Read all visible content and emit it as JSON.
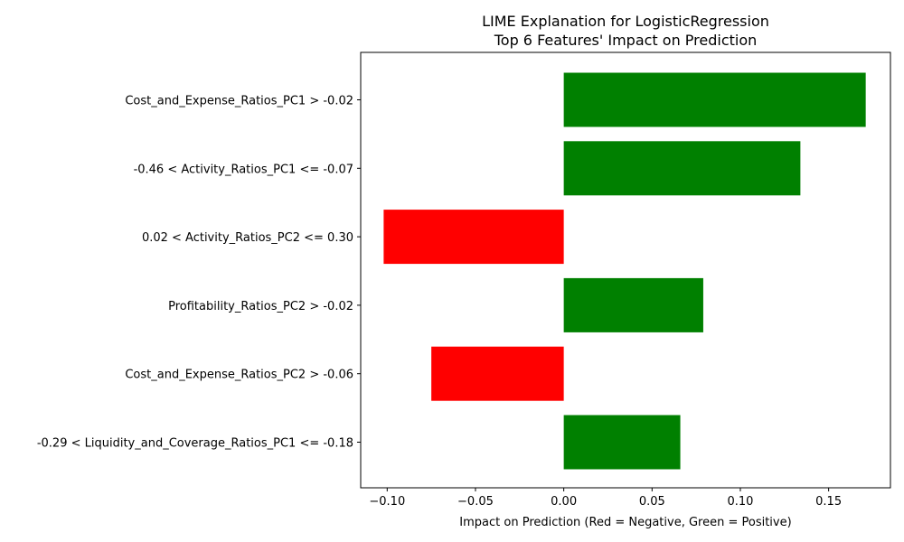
{
  "chart_data": {
    "type": "bar",
    "orientation": "horizontal",
    "title": "LIME Explanation for LogisticRegression",
    "subtitle": "Top 6 Features' Impact on Prediction",
    "xlabel": "Impact on Prediction (Red = Negative, Green = Positive)",
    "ylabel": "",
    "xlim": [
      -0.115,
      0.185
    ],
    "xticks": [
      -0.1,
      -0.05,
      0.0,
      0.05,
      0.1,
      0.15
    ],
    "xtick_labels": [
      "−0.10",
      "−0.05",
      "0.00",
      "0.05",
      "0.10",
      "0.15"
    ],
    "grid": false,
    "colors": {
      "positive": "#008000",
      "negative": "#ff0000"
    },
    "categories": [
      "Cost_and_Expense_Ratios_PC1 > -0.02",
      "-0.46 < Activity_Ratios_PC1 <= -0.07",
      "0.02 < Activity_Ratios_PC2 <= 0.30",
      "Profitability_Ratios_PC2 > -0.02",
      "Cost_and_Expense_Ratios_PC2 > -0.06",
      "-0.29 < Liquidity_and_Coverage_Ratios_PC1 <= -0.18"
    ],
    "values": [
      0.171,
      0.134,
      -0.102,
      0.079,
      -0.075,
      0.066
    ]
  }
}
